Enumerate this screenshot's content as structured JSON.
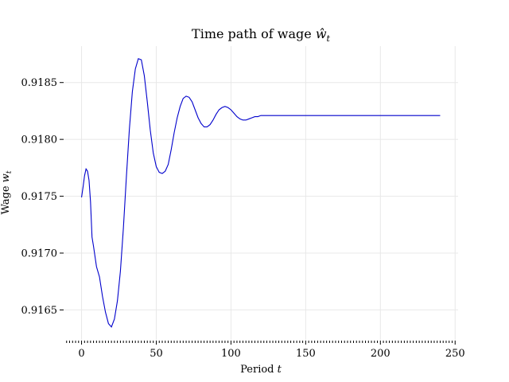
{
  "chart_data": {
    "type": "line",
    "title": "Time path of wage ",
    "title_math": "ŵ",
    "title_sub": "t",
    "xlabel": "Period ",
    "xlabel_math": "t",
    "ylabel": "Wage ",
    "ylabel_math": "w",
    "ylabel_sub": "t",
    "xlim": [
      -12,
      252
    ],
    "ylim": [
      0.91623,
      0.91882
    ],
    "xticks": [
      0,
      50,
      100,
      150,
      200,
      250
    ],
    "xtick_labels": [
      "0",
      "50",
      "100",
      "150",
      "200",
      "250"
    ],
    "yticks": [
      0.9165,
      0.917,
      0.9175,
      0.918,
      0.9185
    ],
    "ytick_labels": [
      "0.9165",
      "0.9170",
      "0.9175",
      "0.9180",
      "0.9185"
    ],
    "grid": true,
    "line_color": "#0000cc",
    "series": [
      {
        "x": [
          0,
          1,
          2,
          3,
          4,
          5,
          6,
          7,
          8,
          10,
          12,
          14,
          16,
          18,
          20,
          22,
          24,
          26,
          28,
          30,
          32,
          34,
          36,
          38,
          40,
          42,
          44,
          46,
          48,
          50,
          52,
          54,
          56,
          58,
          60,
          62,
          64,
          66,
          68,
          70,
          72,
          74,
          76,
          78,
          80,
          82,
          84,
          86,
          88,
          90,
          92,
          94,
          96,
          98,
          100,
          102,
          104,
          106,
          108,
          110,
          112,
          114,
          116,
          118,
          120,
          122,
          125,
          130,
          135,
          140,
          150,
          160,
          170,
          180,
          200,
          220,
          240
        ],
        "y": [
          0.91749,
          0.91758,
          0.91768,
          0.91774,
          0.91772,
          0.91764,
          0.91745,
          0.91714,
          0.91706,
          0.91688,
          0.91679,
          0.91662,
          0.91648,
          0.91638,
          0.91635,
          0.91642,
          0.91658,
          0.91684,
          0.91722,
          0.91767,
          0.91809,
          0.91842,
          0.91862,
          0.91871,
          0.9187,
          0.91856,
          0.91833,
          0.91808,
          0.91788,
          0.91776,
          0.91771,
          0.9177,
          0.91772,
          0.91778,
          0.91791,
          0.91806,
          0.91819,
          0.91829,
          0.91836,
          0.91838,
          0.91837,
          0.91833,
          0.91826,
          0.91819,
          0.91814,
          0.91811,
          0.91811,
          0.91813,
          0.91817,
          0.91822,
          0.91826,
          0.91828,
          0.91829,
          0.91828,
          0.91826,
          0.91823,
          0.9182,
          0.91818,
          0.91817,
          0.91817,
          0.91818,
          0.91819,
          0.9182,
          0.9182,
          0.91821,
          0.91821,
          0.91821,
          0.91821,
          0.91821,
          0.91821,
          0.91821,
          0.91821,
          0.91821,
          0.91821,
          0.91821,
          0.91821,
          0.91821
        ]
      }
    ]
  }
}
